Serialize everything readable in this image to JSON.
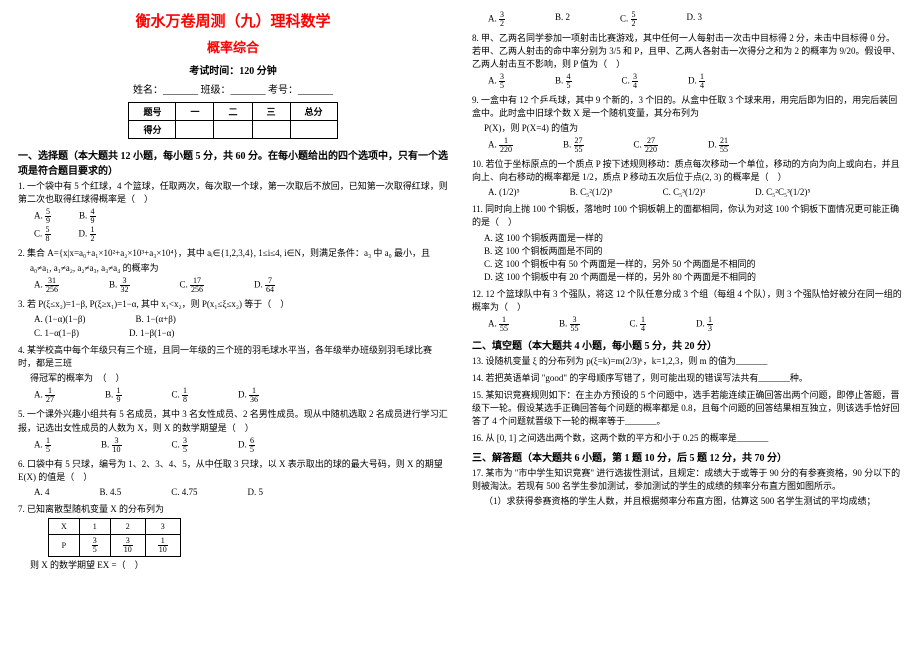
{
  "header": {
    "title_main": "衡水万卷周测（九）理科数学",
    "title_sub": "概率综合",
    "exam_time": "考试时间：120 分钟",
    "info_line": "姓名：_______  班级：_______  考号：_______",
    "table_h1": "题号",
    "table_c1": "一",
    "table_c2": "二",
    "table_c3": "三",
    "table_c4": "总分",
    "table_h2": "得分"
  },
  "sec1_head": "一、选择题（本大题共 12 小题，每小题 5 分，共 60 分。在每小题给出的四个选项中，只有一个选项是符合题目要求的）",
  "q1": {
    "text": "1. 一个袋中有 5 个红球，4 个篮球，任取两次，每次取一个球，第一次取后不放回，已知第一次取得红球，则第二次也取得红球得概率是（　）",
    "A": "A.",
    "An": "5",
    "Ad": "9",
    "B": "B.",
    "Bn": "4",
    "Bd": "9",
    "C": "C.",
    "Cn": "5",
    "Cd": "8",
    "D": "D.",
    "Dn": "1",
    "Dd": "2"
  },
  "q2": {
    "text": "2. 集合 A={x|x=a₀+a₁×10²+a₂×10³+a₃×10⁴}，其中 aᵢ∈{1,2,3,4}, 1≤i≤4, i∈N，则满足条件：a₃ 中 a₀ 最小，且",
    "text2": "a₀≠a₁, a₁≠a₂, a₂≠a₃, a₃≠a₄ 的概率为",
    "A": "A.",
    "An": "31",
    "Ad": "256",
    "B": "B.",
    "Bn": "3",
    "Bd": "32",
    "C": "C.",
    "Cn": "17",
    "Cd": "256",
    "D": "D.",
    "Dn": "7",
    "Dd": "64"
  },
  "q3": {
    "text": "3. 若 P(ξ≤x₂)=1−β, P(ξ≥x₁)=1−α, 其中 x₁<x₂，则 P(x₁≤ξ≤x₂) 等于（　）",
    "A": "A. (1−α)(1−β)",
    "B": "B. 1−(α+β)",
    "C": "C. 1−α(1−β)",
    "D": "D. 1−β(1−α)"
  },
  "q4": {
    "text": "4. 某学校高中每个年级只有三个班，且同一年级的三个班的羽毛球水平当，各年级举办班级别羽毛球比赛时，都是三班",
    "text2": "得冠军的概率为　（　）",
    "A": "A.",
    "An": "1",
    "Ad": "27",
    "B": "B.",
    "Bn": "1",
    "Bd": "9",
    "C": "C.",
    "Cn": "1",
    "Cd": "8",
    "D": "D.",
    "Dn": "1",
    "Dd": "36"
  },
  "q5": {
    "text": "5. 一个课外兴趣小组共有 5 名成员，其中 3 名女性成员、2 名男性成员。现从中随机选取 2 名成员进行学习汇报，记选出女性成员的人数为 X，则 X 的数学期望是（　）",
    "A": "A.",
    "An": "1",
    "Ad": "5",
    "B": "B.",
    "Bn": "3",
    "Bd": "10",
    "C": "C.",
    "Cn": "3",
    "Cd": "5",
    "D": "D.",
    "Dn": "6",
    "Dd": "5"
  },
  "q6": {
    "text": "6. 口袋中有 5 只球，编号为 1、2、3、4、5，从中任取 3 只球，以 X 表示取出的球的最大号码，则 X 的期望 E(X) 的值是（　）",
    "A": "A. 4",
    "B": "B. 4.5",
    "C": "C. 4.75",
    "D": "D. 5"
  },
  "q7": {
    "text": "7. 已知离散型随机变量 X 的分布列为",
    "r1c0": "X",
    "r1c1": "1",
    "r1c2": "2",
    "r1c3": "3",
    "r2c0": "P",
    "r2c1n": "3",
    "r2c1d": "5",
    "r2c2n": "3",
    "r2c2d": "10",
    "r2c3n": "1",
    "r2c3d": "10",
    "text2": "则 X 的数学期望 EX =（　）",
    "A": "A.",
    "An": "3",
    "Ad": "2",
    "B": "B. 2",
    "C": "C.",
    "Cn": "5",
    "Cd": "2",
    "D": "D. 3"
  },
  "q8": {
    "text": "8. 甲、乙两名同学参加一项射击比赛游戏，其中任何一人每射击一次击中目标得 2 分，未击中目标得 0 分。若甲、乙两人射击的命中率分别为 3/5 和 P，且甲、乙两人各射击一次得分之和为 2 的概率为 9/20。假设甲、乙两人射击互不影响，则 P 值为（　）",
    "A": "A.",
    "An": "3",
    "Ad": "5",
    "B": "B.",
    "Bn": "4",
    "Bd": "5",
    "C": "C.",
    "Cn": "3",
    "Cd": "4",
    "D": "D.",
    "Dn": "1",
    "Dd": "4"
  },
  "q9": {
    "text": "9. 一盒中有 12 个乒乓球，其中 9 个新的，3 个旧的。从盒中任取 3 个球来用，用完后即为旧的，用完后装回盒中。此时盒中旧球个数 X 是一个随机变量，其分布列为",
    "text2": "P(X)，则 P(X=4) 的值为",
    "A": "A.",
    "An": "1",
    "Ad": "220",
    "B": "B.",
    "Bn": "27",
    "Bd": "55",
    "C": "C.",
    "Cn": "27",
    "Cd": "220",
    "D": "D.",
    "Dn": "21",
    "Dd": "55"
  },
  "q10": {
    "text": "10. 若位于坐标原点的一个质点 P 按下述规则移动：质点每次移动一个单位，移动的方向为向上或向右，并且向上、向右移动的概率都是 1/2，质点 P 移动五次后位于点(2, 3) 的概率是（　）",
    "A": "A. (1/2)⁵",
    "B": "B. C₅²(1/2)⁵",
    "C": "C. C₅³(1/2)³",
    "D": "D. C₅²C₅³(1/2)⁵"
  },
  "q11": {
    "text": "11. 同时向上抛 100 个铜板，落地时 100 个铜板朝上的面都相同，你认为对这 100 个铜板下面情况更可能正确的是（　）",
    "A": "A. 这 100 个铜板两面是一样的",
    "B": "B. 这 100 个铜板两面是不同的",
    "C": "C. 这 100 个铜板中有 50 个两面是一样的，另外 50 个两面是不相同的",
    "D": "D. 这 100 个铜板中有 20 个两面是一样的，另外 80 个两面是不相同的"
  },
  "q12": {
    "text": "12. 12 个篮球队中有 3 个强队，将这 12 个队任意分成 3 个组（每组 4 个队），则 3 个强队恰好被分在同一组的概率为（　）",
    "A": "A.",
    "An": "1",
    "Ad": "55",
    "B": "B.",
    "Bn": "3",
    "Bd": "55",
    "C": "C.",
    "Cn": "1",
    "Cd": "4",
    "D": "D.",
    "Dn": "1",
    "Ad2": "3"
  },
  "sec2_head": "二、填空题（本大题共 4 小题，每小题 5 分，共 20 分）",
  "q13": "13. 设随机变量 ξ 的分布列为 p(ξ=k)=m(2/3)ᵏ，k=1,2,3，则 m 的值为_______",
  "q14": "14. 若把英语单词 \"good\" 的字母顺序写错了，则可能出现的错误写法共有_______种。",
  "q15": "15. 某知识竞赛规则如下：在主办方预设的 5 个问题中，选手若能连续正确回答出两个问题，即停止答题，晋级下一轮。假设某选手正确回答每个问题的概率都是 0.8，且每个问题的回答结果相互独立，则该选手恰好回答了 4 个问题就晋级下一轮的概率等于_______。",
  "q16": "16. 从 [0, 1] 之间选出两个数，这两个数的平方和小于 0.25 的概率是_______",
  "sec3_head": "三、解答题（本大题共 6 小题，第 1 题 10 分，后 5 题 12 分，共 70 分）",
  "q17": "17. 某市为 \"市中学生知识竞赛\" 进行选拔性测试，且规定：成绩大于或等于 90 分的有参赛资格，90 分以下的则被淘汰。若现有 500 名学生参加测试，参加测试的学生的成绩的频率分布直方图如图所示。",
  "q17b": "（1）求获得参赛资格的学生人数，并且根据频率分布直方图，估算这 500 名学生测试的平均成绩；"
}
